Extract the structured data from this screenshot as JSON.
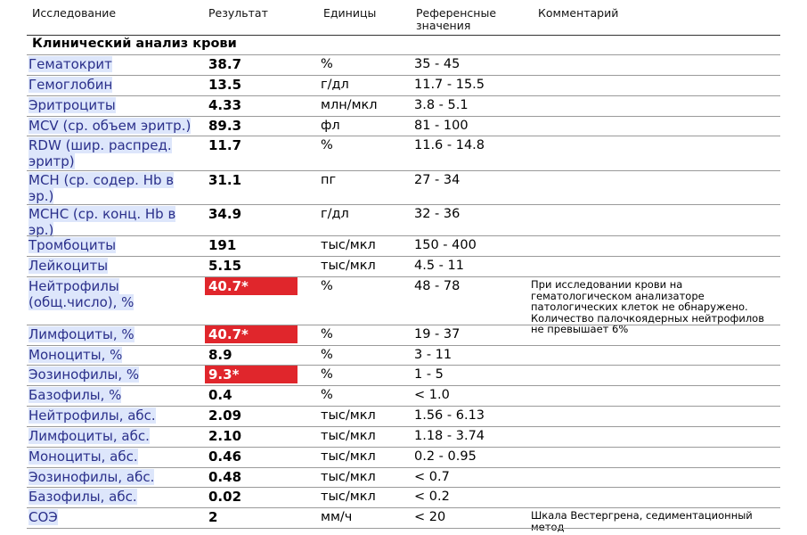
{
  "header": {
    "study": "Исследование",
    "result": "Результат",
    "units": "Единицы",
    "reference": "Референсные\nзначения",
    "comment": "Комментарий"
  },
  "section_title": "Клинический анализ крови",
  "rows": [
    {
      "name": "Гематокрит",
      "result": "38.7",
      "flag": false,
      "unit": "%",
      "ref": "35 - 45",
      "comment": ""
    },
    {
      "name": "Гемоглобин",
      "result": "13.5",
      "flag": false,
      "unit": "г/дл",
      "ref": "11.7 - 15.5",
      "comment": ""
    },
    {
      "name": "Эритроциты",
      "result": "4.33",
      "flag": false,
      "unit": "млн/мкл",
      "ref": "3.8 - 5.1",
      "comment": ""
    },
    {
      "name": "MCV (ср. объем эритр.)",
      "result": "89.3",
      "flag": false,
      "unit": "фл",
      "ref": "81 - 100",
      "comment": ""
    },
    {
      "name": "RDW (шир. распред.\nэритр)",
      "result": "11.7",
      "flag": false,
      "unit": "%",
      "ref": "11.6 - 14.8",
      "comment": ""
    },
    {
      "name": "MCH (ср. содер. Hb в\nэр.)",
      "result": "31.1",
      "flag": false,
      "unit": "пг",
      "ref": "27 - 34",
      "comment": ""
    },
    {
      "name": "MCHC (ср. конц. Hb в\nэр.)",
      "result": "34.9",
      "flag": false,
      "unit": "г/дл",
      "ref": "32 - 36",
      "comment": ""
    },
    {
      "name": "Тромбоциты",
      "result": "191",
      "flag": false,
      "unit": "тыс/мкл",
      "ref": "150 - 400",
      "comment": ""
    },
    {
      "name": "Лейкоциты",
      "result": "5.15",
      "flag": false,
      "unit": "тыс/мкл",
      "ref": "4.5 - 11",
      "comment": ""
    },
    {
      "name": "Нейтрофилы\n(общ.число), %",
      "result": "40.7*",
      "flag": true,
      "unit": "%",
      "ref": "48 - 78",
      "comment": "При исследовании крови на гематологическом анализаторе патологических клеток не обнаружено. Количество палочкоядерных нейтрофилов не превышает 6%"
    },
    {
      "name": "Лимфоциты, %",
      "result": "40.7*",
      "flag": true,
      "unit": "%",
      "ref": "19 - 37",
      "comment": ""
    },
    {
      "name": "Моноциты, %",
      "result": "8.9",
      "flag": false,
      "unit": "%",
      "ref": "3 - 11",
      "comment": ""
    },
    {
      "name": "Эозинофилы, %",
      "result": "9.3*",
      "flag": true,
      "unit": "%",
      "ref": "1 - 5",
      "comment": ""
    },
    {
      "name": "Базофилы, %",
      "result": "0.4",
      "flag": false,
      "unit": "%",
      "ref": "< 1.0",
      "comment": ""
    },
    {
      "name": "Нейтрофилы, абс.",
      "result": "2.09",
      "flag": false,
      "unit": "тыс/мкл",
      "ref": "1.56 - 6.13",
      "comment": ""
    },
    {
      "name": "Лимфоциты, абс.",
      "result": "2.10",
      "flag": false,
      "unit": "тыс/мкл",
      "ref": "1.18 - 3.74",
      "comment": ""
    },
    {
      "name": "Моноциты, абс.",
      "result": "0.46",
      "flag": false,
      "unit": "тыс/мкл",
      "ref": "0.2 - 0.95",
      "comment": ""
    },
    {
      "name": "Эозинофилы, абс.",
      "result": "0.48",
      "flag": false,
      "unit": "тыс/мкл",
      "ref": "< 0.7",
      "comment": ""
    },
    {
      "name": "Базофилы, абс.",
      "result": "0.02",
      "flag": false,
      "unit": "тыс/мкл",
      "ref": "< 0.2",
      "comment": ""
    },
    {
      "name": "СОЭ",
      "result": "2",
      "flag": false,
      "unit": "мм/ч",
      "ref": "< 20",
      "comment": "Шкала Вестергрена, седиментационный метод"
    }
  ],
  "colors": {
    "flag_bg": "#e0262c",
    "name_highlight": "#dde6fb",
    "name_text": "#2a2f8a"
  }
}
